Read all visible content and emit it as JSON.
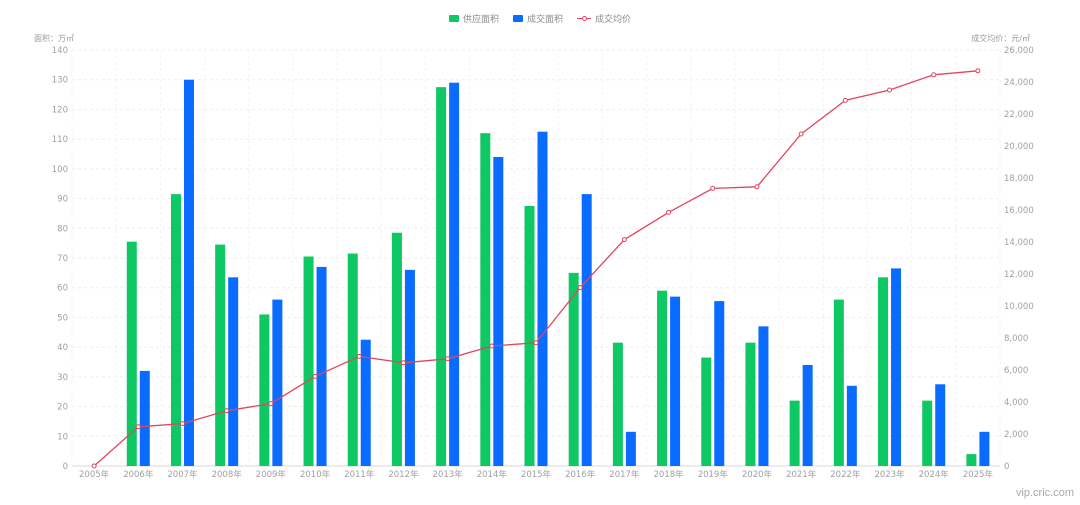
{
  "chart_data": {
    "type": "bar",
    "categories": [
      "2005年",
      "2006年",
      "2007年",
      "2008年",
      "2009年",
      "2010年",
      "2011年",
      "2012年",
      "2013年",
      "2014年",
      "2015年",
      "2016年",
      "2017年",
      "2018年",
      "2019年",
      "2020年",
      "2021年",
      "2022年",
      "2023年",
      "2024年",
      "2025年"
    ],
    "series": [
      {
        "name": "供应面积",
        "type": "bar",
        "axis": "left",
        "color": "#0ec864",
        "values": [
          0,
          75.5,
          91.5,
          74.5,
          51,
          70.5,
          71.5,
          78.5,
          127.5,
          112,
          87.5,
          65,
          41.5,
          59,
          36.5,
          41.5,
          22,
          56,
          63.5,
          22,
          4
        ]
      },
      {
        "name": "成交面积",
        "type": "bar",
        "axis": "left",
        "color": "#0a6cff",
        "values": [
          0,
          32,
          130,
          63.5,
          56,
          67,
          42.5,
          66,
          129,
          104,
          112.5,
          91.5,
          11.5,
          57,
          55.5,
          47,
          34,
          27,
          66.5,
          27.5,
          11.5
        ]
      },
      {
        "name": "成交均价",
        "type": "line",
        "axis": "right",
        "color": "#e0475d",
        "values": [
          0,
          2450,
          2650,
          3450,
          3900,
          5600,
          6850,
          6450,
          6700,
          7500,
          7700,
          11150,
          14150,
          15850,
          17350,
          17450,
          20750,
          22850,
          23500,
          24450,
          24700
        ]
      }
    ],
    "y_left": {
      "label": "面积：万㎡",
      "min": 0,
      "max": 140,
      "ticks": [
        0,
        10,
        20,
        30,
        40,
        50,
        60,
        70,
        80,
        90,
        100,
        110,
        120,
        130,
        140
      ]
    },
    "y_right": {
      "label": "成交均价：元/㎡",
      "min": 0,
      "max": 26000,
      "ticks": [
        "0",
        "2,000",
        "4,000",
        "6,000",
        "8,000",
        "10,000",
        "12,000",
        "14,000",
        "16,000",
        "18,000",
        "20,000",
        "22,000",
        "24,000",
        "26,000"
      ]
    },
    "grid": true,
    "legend_position": "top-center"
  },
  "watermark": "vip.cric.com"
}
